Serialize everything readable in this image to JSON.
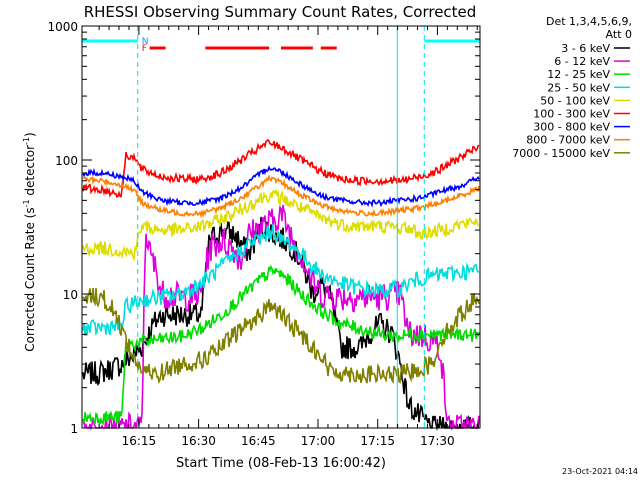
{
  "chart_data": {
    "type": "line",
    "title": "RHESSI Observing Summary Count Rates, Corrected",
    "xlabel": "Start Time (08-Feb-13 16:00:42)",
    "ylabel_parts": [
      "Corrected Count Rate (s",
      "-1",
      " detector",
      "-1",
      ")"
    ],
    "ylabel": "Corrected Count Rate (s-1 detector-1)",
    "yscale": "log",
    "ylim": [
      1,
      1000
    ],
    "xlim_minutes": [
      0,
      100
    ],
    "x_unit": "minutes after 16:00:42",
    "y_tick_labels": [
      {
        "v": 1,
        "label": "1"
      },
      {
        "v": 10,
        "label": "10"
      },
      {
        "v": 100,
        "label": "100"
      },
      {
        "v": 1000,
        "label": "1000"
      }
    ],
    "x_tick_labels": [
      {
        "t": 14.3,
        "label": "16:15"
      },
      {
        "t": 29.3,
        "label": "16:30"
      },
      {
        "t": 44.3,
        "label": "16:45"
      },
      {
        "t": 59.3,
        "label": "17:00"
      },
      {
        "t": 74.3,
        "label": "17:15"
      },
      {
        "t": 89.3,
        "label": "17:30"
      }
    ],
    "legend": {
      "header": [
        "Det 1,3,4,5,6,9,",
        "Att 0"
      ],
      "placement": "right"
    },
    "series": [
      {
        "name": "3 - 6 keV",
        "color": "#000000",
        "x": [
          0,
          5,
          10,
          13,
          15,
          18,
          20,
          25,
          30,
          32,
          35,
          38,
          40,
          42,
          45,
          47,
          48,
          50,
          52,
          55,
          58,
          60,
          62,
          63,
          65,
          68,
          70,
          72,
          75,
          78,
          80,
          82,
          85,
          88,
          90,
          92,
          95,
          98,
          100
        ],
        "y": [
          2.5,
          2.6,
          3,
          3.5,
          4,
          6,
          7,
          7,
          7,
          25,
          30,
          28,
          24,
          20,
          32,
          30,
          28,
          26,
          24,
          18,
          10,
          12,
          10,
          8,
          4,
          4,
          4,
          5,
          6,
          5,
          3,
          1.5,
          1.2,
          1,
          1,
          1,
          1,
          1,
          1
        ]
      },
      {
        "name": "6 - 12 keV",
        "color": "#dd00dd",
        "x": [
          0,
          5,
          10,
          13,
          15,
          16,
          17,
          19,
          20,
          22,
          24,
          25,
          28,
          30,
          32,
          35,
          38,
          40,
          42,
          44,
          45,
          48,
          50,
          52,
          54,
          55,
          58,
          60,
          65,
          70,
          75,
          80,
          82,
          85,
          88,
          90,
          92,
          95,
          98,
          100
        ],
        "y": [
          1,
          1,
          1,
          1,
          1,
          32,
          20,
          14,
          10,
          10,
          9.5,
          9.5,
          9.5,
          10,
          22,
          25,
          22,
          18,
          28,
          30,
          32,
          35,
          40,
          30,
          22,
          20,
          12,
          10,
          9.5,
          9.5,
          9.5,
          10,
          5,
          5,
          4.5,
          4,
          1,
          1,
          1,
          1
        ]
      },
      {
        "name": "12 - 25 keV",
        "color": "#00dd00",
        "x": [
          0,
          5,
          10,
          11,
          13,
          15,
          20,
          25,
          30,
          35,
          40,
          45,
          48,
          50,
          52,
          55,
          60,
          65,
          70,
          75,
          80,
          82,
          85,
          90,
          95,
          100
        ],
        "y": [
          1.2,
          1.2,
          1.2,
          4.2,
          4.2,
          4.4,
          4.6,
          4.8,
          5.5,
          7,
          9.5,
          13,
          15,
          14,
          12.5,
          10,
          7.5,
          6,
          5.5,
          5,
          4.8,
          5,
          5,
          5,
          5,
          4.9
        ]
      },
      {
        "name": "25 - 50 keV",
        "color": "#00dddd",
        "x": [
          0,
          5,
          10,
          11,
          13,
          15,
          20,
          25,
          30,
          35,
          40,
          42,
          45,
          48,
          50,
          52,
          55,
          60,
          65,
          70,
          75,
          80,
          82,
          85,
          90,
          95,
          100
        ],
        "y": [
          5.5,
          5.6,
          5.8,
          8,
          8.5,
          9,
          9.5,
          10,
          12,
          16,
          21,
          24,
          26,
          30,
          25,
          24,
          20,
          14,
          12,
          11,
          10.5,
          11,
          12,
          13,
          14,
          14.5,
          15
        ]
      },
      {
        "name": "50 - 100 keV",
        "color": "#dddd00",
        "x": [
          0,
          5,
          10,
          13,
          15,
          20,
          25,
          30,
          35,
          40,
          45,
          47,
          50,
          55,
          60,
          65,
          70,
          75,
          80,
          82,
          85,
          90,
          95,
          100
        ],
        "y": [
          22,
          22,
          21,
          20,
          32,
          30,
          30,
          32,
          36,
          43,
          52,
          55,
          52,
          44,
          37,
          33,
          32,
          32,
          31,
          31,
          28,
          30,
          33,
          35
        ]
      },
      {
        "name": "100 - 300 keV",
        "color": "#ff0000",
        "x": [
          0,
          5,
          10,
          11,
          13,
          15,
          20,
          25,
          30,
          35,
          40,
          45,
          47,
          50,
          55,
          60,
          65,
          70,
          75,
          80,
          85,
          90,
          95,
          100
        ],
        "y": [
          62,
          60,
          55,
          110,
          105,
          85,
          75,
          72,
          72,
          80,
          100,
          125,
          135,
          125,
          100,
          82,
          72,
          70,
          70,
          70,
          75,
          85,
          105,
          125
        ]
      },
      {
        "name": "300 - 800 keV",
        "color": "#0000ff",
        "x": [
          0,
          5,
          10,
          13,
          15,
          20,
          25,
          30,
          35,
          40,
          45,
          47,
          50,
          55,
          60,
          65,
          70,
          75,
          80,
          85,
          90,
          95,
          100
        ],
        "y": [
          80,
          80,
          75,
          70,
          58,
          50,
          48,
          48,
          52,
          62,
          80,
          88,
          82,
          66,
          54,
          50,
          48,
          48,
          50,
          52,
          58,
          64,
          75
        ]
      },
      {
        "name": "800 - 7000 keV",
        "color": "#ff8000",
        "x": [
          0,
          5,
          10,
          13,
          15,
          20,
          25,
          30,
          35,
          40,
          45,
          47,
          50,
          55,
          60,
          65,
          70,
          75,
          80,
          85,
          90,
          95,
          100
        ],
        "y": [
          72,
          70,
          65,
          60,
          48,
          42,
          40,
          40,
          44,
          52,
          66,
          72,
          68,
          55,
          46,
          42,
          40,
          40,
          42,
          44,
          48,
          54,
          62
        ]
      },
      {
        "name": "7000 - 15000 keV",
        "color": "#808000",
        "x": [
          0,
          5,
          8,
          10,
          13,
          15,
          18,
          20,
          25,
          30,
          35,
          40,
          45,
          47,
          50,
          55,
          60,
          62,
          65,
          70,
          75,
          80,
          85,
          88,
          90,
          95,
          100
        ],
        "y": [
          10,
          9.5,
          7.5,
          5.5,
          3.3,
          2.7,
          2.5,
          2.6,
          3,
          3.2,
          4,
          5.5,
          7,
          8.5,
          7,
          5,
          3.5,
          2.7,
          2.6,
          2.5,
          2.5,
          2.5,
          2.8,
          3,
          4.5,
          7,
          10
        ]
      }
    ],
    "flags": [
      {
        "label": "N",
        "color": "#00a0ff"
      },
      {
        "label": "F",
        "color": "#ff0000"
      }
    ],
    "flag_bars": {
      "flare_color": "#ff0000",
      "saa_color": "#00ffff",
      "flare_intervals": [
        [
          17,
          21
        ],
        [
          31,
          47
        ],
        [
          50,
          58
        ],
        [
          60,
          64
        ]
      ],
      "saa_intervals": [
        [
          0,
          14
        ],
        [
          86,
          100
        ]
      ]
    },
    "night_boundaries": [
      14,
      86
    ],
    "grid": false,
    "footer_timestamp": "23-Oct-2021 04:14"
  }
}
